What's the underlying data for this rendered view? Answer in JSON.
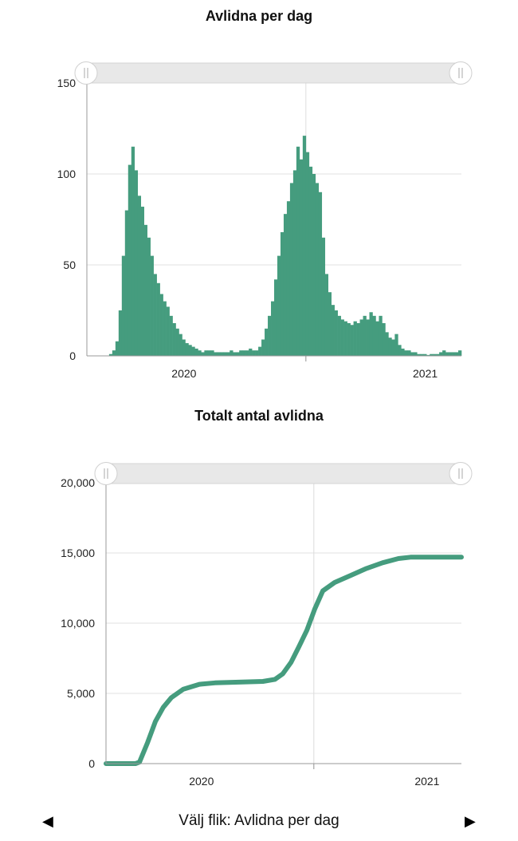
{
  "color": "#459c7e",
  "chart_data": [
    {
      "type": "bar",
      "title": "Avlidna per dag",
      "xlabel": "",
      "ylabel": "",
      "ylim": [
        0,
        150
      ],
      "yticks": [
        0,
        50,
        100,
        150
      ],
      "ytick_labels": [
        "0",
        "50",
        "100",
        "150"
      ],
      "xlim": [
        0,
        118
      ],
      "xticks": [
        {
          "x": 30.6,
          "label": "2020"
        },
        {
          "x": 106.6,
          "label": "2021"
        }
      ],
      "x_gridline": 69,
      "grid": true,
      "values": [
        0,
        0,
        0,
        0,
        0,
        0,
        0,
        1,
        3,
        8,
        25,
        55,
        80,
        105,
        115,
        102,
        88,
        82,
        72,
        65,
        55,
        45,
        40,
        34,
        30,
        27,
        22,
        18,
        15,
        12,
        9,
        7,
        6,
        5,
        4,
        3,
        2,
        3,
        3,
        3,
        2,
        2,
        2,
        2,
        2,
        3,
        2,
        2,
        3,
        3,
        3,
        4,
        3,
        3,
        5,
        9,
        15,
        22,
        30,
        42,
        55,
        68,
        78,
        85,
        95,
        102,
        115,
        108,
        121,
        112,
        104,
        100,
        95,
        90,
        65,
        45,
        35,
        28,
        25,
        22,
        20,
        19,
        18,
        17,
        19,
        18,
        20,
        22,
        20,
        24,
        22,
        19,
        22,
        18,
        13,
        10,
        9,
        12,
        6,
        4,
        3,
        3,
        2,
        2,
        1,
        1,
        1,
        0.5,
        1,
        1,
        1,
        2,
        3,
        2,
        2,
        2,
        2,
        3
      ]
    },
    {
      "type": "line",
      "title": "Totalt antal avlidna",
      "xlabel": "",
      "ylabel": "",
      "ylim": [
        0,
        20000
      ],
      "yticks": [
        0,
        5000,
        10000,
        15000,
        20000
      ],
      "ytick_labels": [
        "0",
        "5,000",
        "10,000",
        "15,000",
        "20,000"
      ],
      "xlim": [
        0,
        118
      ],
      "xticks": [
        {
          "x": 31.7,
          "label": "2020"
        },
        {
          "x": 106.6,
          "label": "2021"
        }
      ],
      "x_gridline": 69,
      "grid": true,
      "points": [
        [
          0,
          0
        ],
        [
          9.8,
          0
        ],
        [
          11.1,
          100
        ],
        [
          13.8,
          1500
        ],
        [
          16.4,
          3000
        ],
        [
          19,
          4000
        ],
        [
          21.7,
          4700
        ],
        [
          25.7,
          5300
        ],
        [
          31,
          5650
        ],
        [
          36.2,
          5750
        ],
        [
          44.2,
          5800
        ],
        [
          52.1,
          5850
        ],
        [
          56.1,
          6000
        ],
        [
          58.7,
          6400
        ],
        [
          61.4,
          7200
        ],
        [
          64,
          8300
        ],
        [
          66.7,
          9500
        ],
        [
          69.3,
          11000
        ],
        [
          72,
          12300
        ],
        [
          75.9,
          12900
        ],
        [
          81.2,
          13400
        ],
        [
          86.5,
          13900
        ],
        [
          91.8,
          14300
        ],
        [
          97.1,
          14600
        ],
        [
          101.1,
          14700
        ],
        [
          118,
          14700
        ]
      ]
    }
  ],
  "footer": {
    "label": "Välj flik: Avlidna per dag",
    "prev": "◀",
    "next": "▶"
  }
}
